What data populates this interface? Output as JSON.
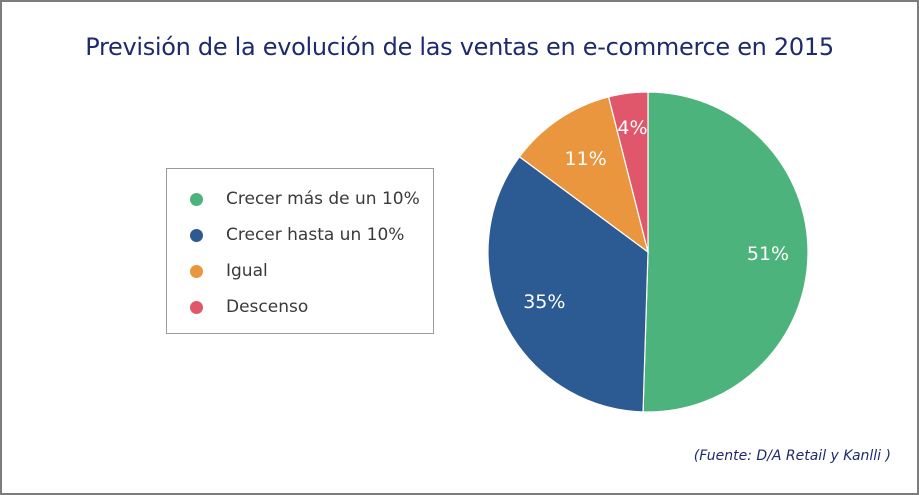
{
  "chart_data": {
    "type": "pie",
    "title": "Previsión de la evolución de las ventas en e-commerce en 2015",
    "categories": [
      "Crecer más de un 10%",
      "Crecer hasta un 10%",
      "Igual",
      "Descenso"
    ],
    "values": [
      51,
      35,
      11,
      4
    ],
    "value_labels": [
      "51%",
      "35%",
      "11%",
      "4%"
    ],
    "colors": [
      "#4db37c",
      "#2c5a92",
      "#e9963e",
      "#e0566a"
    ],
    "legend_position": "left",
    "source": "(Fuente: D/A Retail y Kanlli )"
  }
}
